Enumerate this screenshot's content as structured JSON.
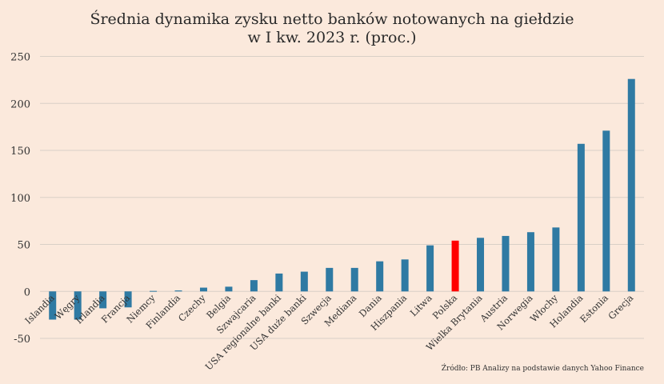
{
  "chart_data": {
    "type": "bar",
    "title": [
      "Średnia dynamika zysku netto banków notowanych na giełdzie",
      "w I kw. 2023 r. (proc.)"
    ],
    "source": "Źródło: PB Analizy na podstawie danych Yahoo Finance",
    "ylim": [
      -50,
      250
    ],
    "yticks": [
      -50,
      0,
      50,
      100,
      150,
      200,
      250
    ],
    "grid": true,
    "colors": {
      "default": "#2f7aa3",
      "highlight": "#ff0000",
      "background": "#fbe9dc",
      "grid": "#d9cfc7",
      "text": "#333333"
    },
    "categories": [
      "Islandia",
      "Węgry",
      "Irlandia",
      "Francja",
      "Niemcy",
      "Finlandia",
      "Czechy",
      "Belgia",
      "Szwajcaria",
      "USA regionalne banki",
      "USA duże banki",
      "Szwecja",
      "Mediana",
      "Dania",
      "Hiszpania",
      "Litwa",
      "Polska",
      "Wielka Brytania",
      "Austria",
      "Norwegia",
      "Włochy",
      "Holandia",
      "Estonia",
      "Grecja"
    ],
    "values": [
      -30,
      -30,
      -18,
      -17,
      0.5,
      1,
      4,
      5,
      12,
      19,
      21,
      25,
      25,
      32,
      34,
      49,
      54,
      57,
      59,
      63,
      68,
      157,
      171,
      226
    ],
    "highlight": [
      "Polska"
    ]
  }
}
